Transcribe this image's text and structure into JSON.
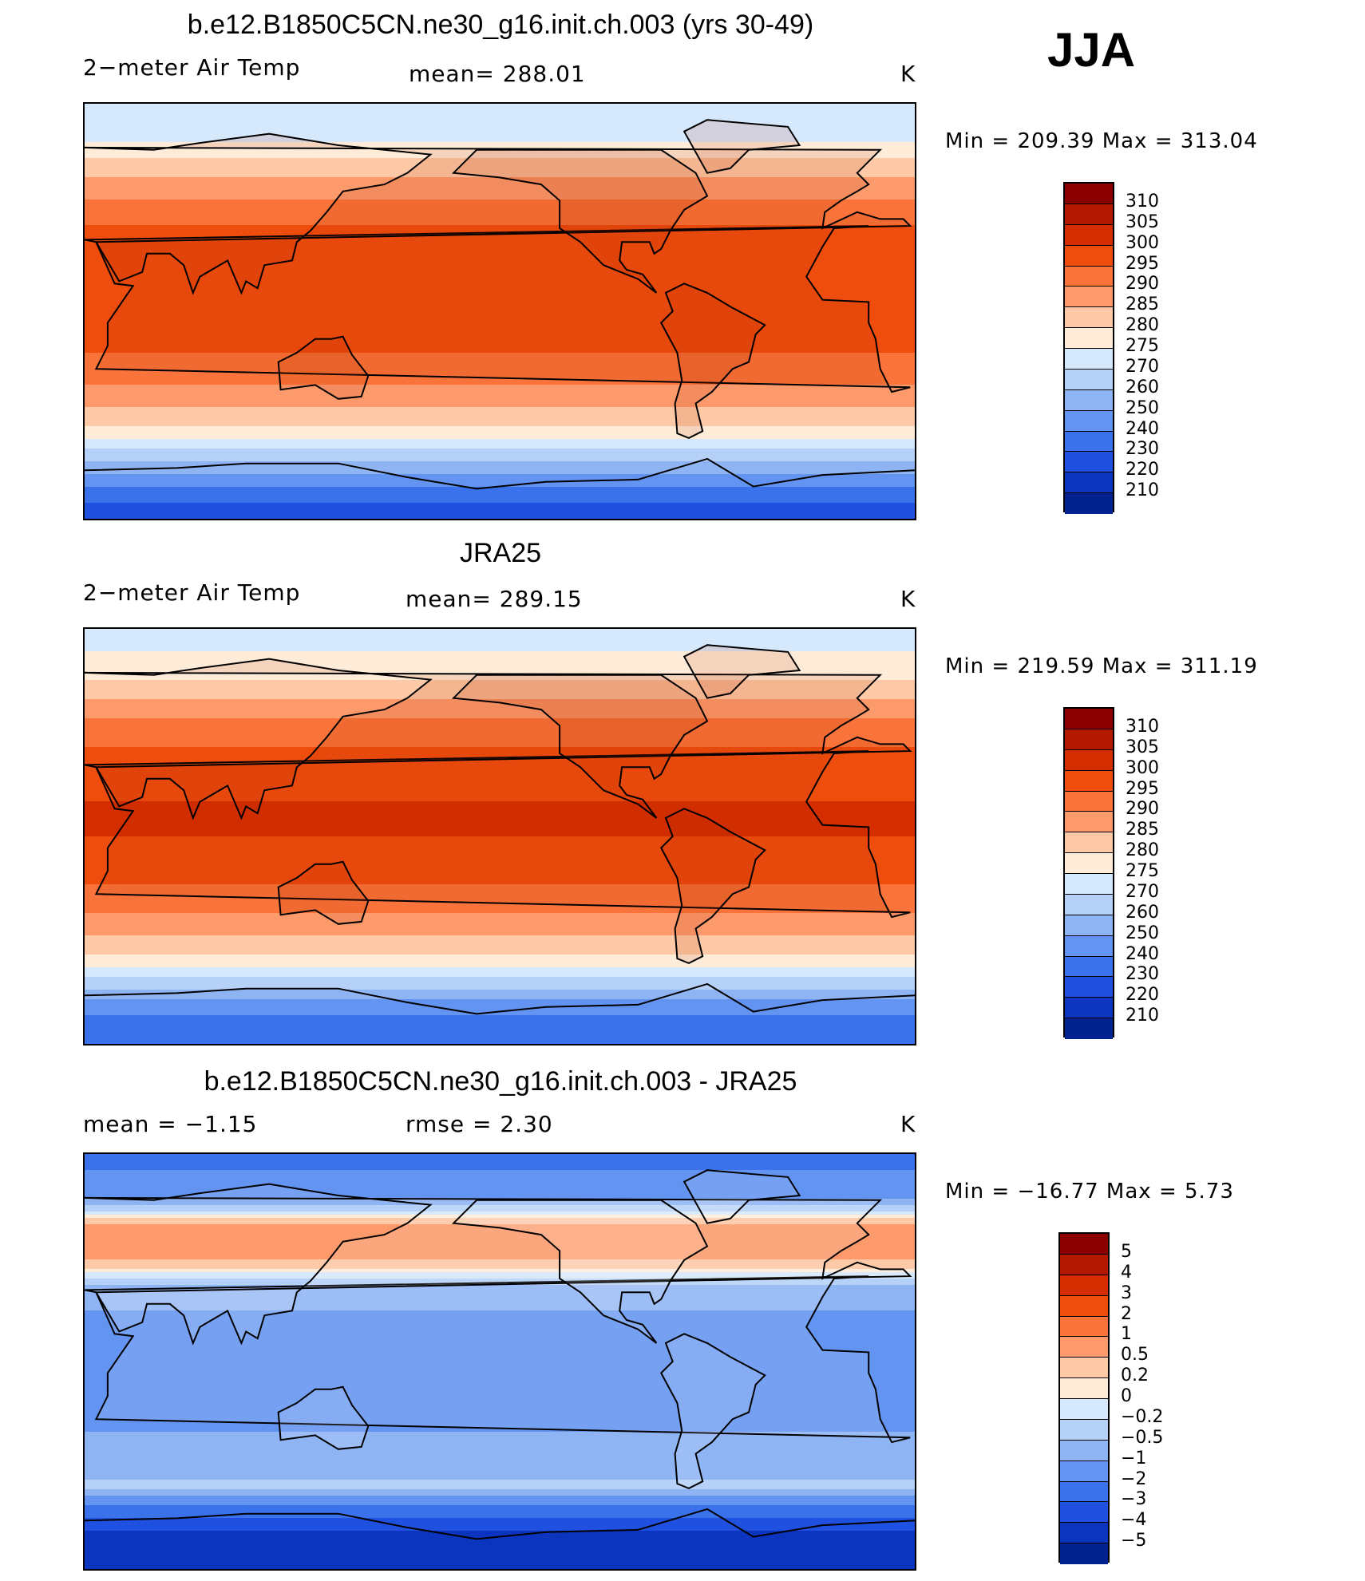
{
  "season": "JJA",
  "panels": [
    {
      "title": "b.e12.B1850C5CN.ne30_g16.init.ch.003 (yrs 30-49)",
      "variable": "2−meter Air Temp",
      "stat": "mean=  288.01",
      "stat2": "",
      "units": "K",
      "minmax": "Min  =  209.39  Max  =  313.04",
      "kind": "abs"
    },
    {
      "title": "JRA25",
      "variable": "2−meter Air Temp",
      "stat": "mean=  289.15",
      "stat2": "",
      "units": "K",
      "minmax": "Min  =  219.59  Max  =  311.19",
      "kind": "abs"
    },
    {
      "title": "b.e12.B1850C5CN.ne30_g16.init.ch.003 - JRA25",
      "variable": "",
      "stat": "mean  =    −1.15",
      "stat2": "rmse  =     2.30",
      "units": "K",
      "minmax": "Min  =  −16.77  Max  =     5.73",
      "kind": "diff"
    }
  ],
  "colors": {
    "abs": [
      "#8b0000",
      "#b31900",
      "#d42e00",
      "#ee4d0e",
      "#f9733a",
      "#fc9a6c",
      "#fdc9a6",
      "#feecd9",
      "#d6e8fb",
      "#b6d1f7",
      "#8fb4f4",
      "#6394f1",
      "#3a72ec",
      "#1f50df",
      "#0b34bf",
      "#02228f"
    ],
    "diff": [
      "#8b0000",
      "#b31900",
      "#d42e00",
      "#ee4d0e",
      "#f9733a",
      "#fc9a6c",
      "#fdc9a6",
      "#feecd9",
      "#d6e8fb",
      "#b6d1f7",
      "#8fb4f4",
      "#6394f1",
      "#3a72ec",
      "#1f50df",
      "#0b34bf",
      "#02228f"
    ]
  },
  "chart_data": [
    {
      "type": "heatmap",
      "title": "b.e12.B1850C5CN.ne30_g16.init.ch.003 (yrs 30-49)",
      "variable": "2-meter Air Temp",
      "units": "K",
      "mean": 288.01,
      "min": 209.39,
      "max": 313.04,
      "colorbar_levels": [
        "310",
        "305",
        "300",
        "295",
        "290",
        "285",
        "280",
        "275",
        "270",
        "260",
        "250",
        "240",
        "230",
        "220",
        "210"
      ],
      "zonal_profile": {
        "lat": [
          90,
          75,
          60,
          45,
          30,
          15,
          0,
          -15,
          -30,
          -45,
          -55,
          -60,
          -70,
          -80,
          -90
        ],
        "temp": [
          272,
          274,
          284,
          292,
          298,
          300,
          299,
          296,
          291,
          283,
          276,
          270,
          250,
          232,
          226
        ]
      }
    },
    {
      "type": "heatmap",
      "title": "JRA25",
      "variable": "2-meter Air Temp",
      "units": "K",
      "mean": 289.15,
      "min": 219.59,
      "max": 311.19,
      "colorbar_levels": [
        "310",
        "305",
        "300",
        "295",
        "290",
        "285",
        "280",
        "275",
        "270",
        "260",
        "250",
        "240",
        "230",
        "220",
        "210"
      ],
      "zonal_profile": {
        "lat": [
          90,
          75,
          60,
          45,
          30,
          15,
          0,
          -15,
          -30,
          -45,
          -55,
          -60,
          -70,
          -80,
          -90
        ],
        "temp": [
          273,
          276,
          285,
          293,
          298,
          300,
          300,
          297,
          292,
          284,
          277,
          271,
          252,
          236,
          230
        ]
      }
    },
    {
      "type": "heatmap",
      "title": "b.e12.B1850C5CN.ne30_g16.init.ch.003 - JRA25",
      "units": "K",
      "mean": -1.15,
      "rmse": 2.3,
      "min": -16.77,
      "max": 5.73,
      "colorbar_levels": [
        "5",
        "4",
        "3",
        "2",
        "1",
        "0.5",
        "0.2",
        "0",
        "−0.2",
        "−0.5",
        "−1",
        "−2",
        "−3",
        "−4",
        "−5"
      ],
      "zonal_profile": {
        "lat": [
          90,
          75,
          60,
          45,
          30,
          15,
          0,
          -15,
          -30,
          -45,
          -55,
          -60,
          -70,
          -80,
          -90
        ],
        "temp": [
          -2.5,
          -1.5,
          0.5,
          0.6,
          -0.8,
          -1.2,
          -1.0,
          -1.1,
          -1.0,
          -0.8,
          -0.3,
          -1.5,
          -3.5,
          -5.0,
          -5.0
        ]
      }
    }
  ]
}
